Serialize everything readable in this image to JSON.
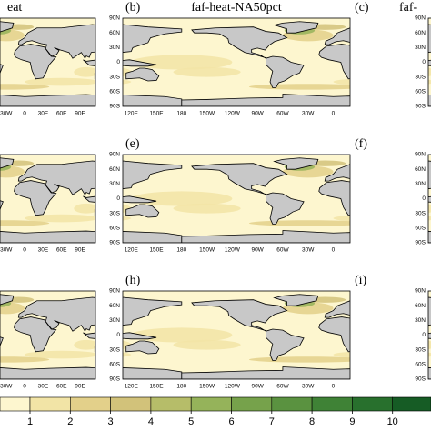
{
  "panels": [
    {
      "label": "eat",
      "col": 0,
      "row": 0
    },
    {
      "label": "(b)",
      "title": "faf-heat-NA50pct",
      "col": 1,
      "row": 0
    },
    {
      "label": "(c)",
      "title": "faf-",
      "col": 2,
      "row": 0
    },
    {
      "col": 0,
      "row": 1
    },
    {
      "label": "(e)",
      "col": 1,
      "row": 1
    },
    {
      "label": "(f)",
      "col": 2,
      "row": 1
    },
    {
      "col": 0,
      "row": 2
    },
    {
      "label": "(h)",
      "col": 1,
      "row": 2
    },
    {
      "label": "(i)",
      "col": 2,
      "row": 2
    }
  ],
  "lat_labels": [
    "90N",
    "60N",
    "30N",
    "0",
    "30S",
    "60S",
    "90S"
  ],
  "lon_labels_center": [
    "120E",
    "150E",
    "180",
    "150W",
    "120W",
    "90W",
    "60W",
    "30W",
    "0"
  ],
  "lon_labels_left": [
    "30W",
    "0",
    "30E",
    "60E",
    "90E"
  ],
  "colorbar": {
    "ticks": [
      1,
      2,
      3,
      4,
      5,
      6,
      7,
      8,
      9,
      10
    ],
    "colors": [
      "#fdf6cf",
      "#f2e4a6",
      "#e3d08a",
      "#d2c27a",
      "#b6bd69",
      "#95b35a",
      "#76a24b",
      "#5a9240",
      "#3f8236",
      "#28702d",
      "#165c25"
    ]
  }
}
